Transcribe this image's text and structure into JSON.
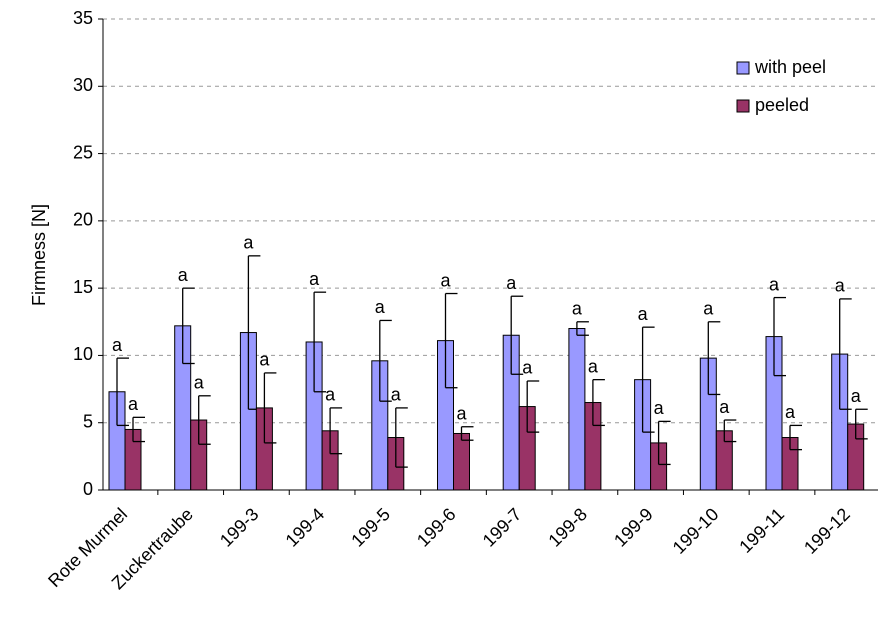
{
  "chart_data": {
    "type": "bar",
    "y_label": "Firmness [N]",
    "categories": [
      "Rote Murmel",
      "Zuckertraube",
      "199-3",
      "199-4",
      "199-5",
      "199-6",
      "199-7",
      "199-8",
      "199-9",
      "199-10",
      "199-11",
      "199-12"
    ],
    "series": [
      {
        "name": "with peel",
        "color": "#9999ff",
        "values": [
          7.3,
          12.2,
          11.7,
          11.0,
          9.6,
          11.1,
          11.5,
          12.0,
          8.2,
          9.8,
          11.4,
          10.1
        ],
        "errors": [
          2.5,
          2.8,
          5.7,
          3.7,
          3.0,
          3.5,
          2.9,
          0.5,
          3.9,
          2.7,
          2.9,
          4.1
        ],
        "letters": [
          "a",
          "a",
          "a",
          "a",
          "a",
          "a",
          "a",
          "a",
          "a",
          "a",
          "a",
          "a"
        ]
      },
      {
        "name": "peeled",
        "color": "#993366",
        "values": [
          4.5,
          5.2,
          6.1,
          4.4,
          3.9,
          4.2,
          6.2,
          6.5,
          3.5,
          4.4,
          3.9,
          4.9
        ],
        "errors": [
          0.9,
          1.8,
          2.6,
          1.7,
          2.2,
          0.5,
          1.9,
          1.7,
          1.6,
          0.8,
          0.9,
          1.1
        ],
        "letters": [
          "a",
          "a",
          "a",
          "a",
          "a",
          "a",
          "a",
          "a",
          "a",
          "a",
          "a",
          "a"
        ]
      }
    ],
    "ylim": [
      0,
      35
    ],
    "yticks": [
      0,
      5,
      10,
      15,
      20,
      25,
      30,
      35
    ],
    "grid": true,
    "legend": "upper right"
  }
}
